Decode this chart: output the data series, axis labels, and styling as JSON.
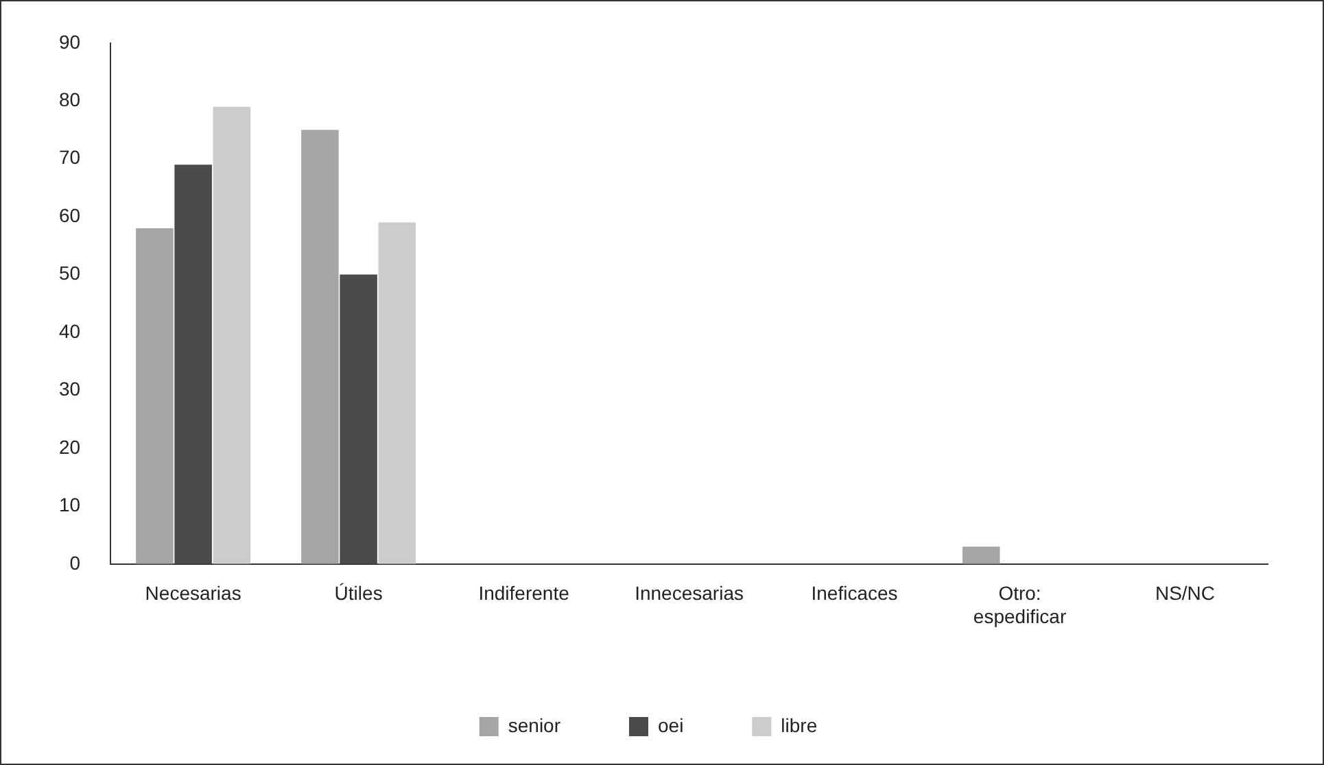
{
  "chart_data": {
    "type": "bar",
    "categories": [
      "Necesarias",
      "Útiles",
      "Indiferente",
      "Innecesarias",
      "Ineficaces",
      "Otro:\nespedificar",
      "NS/NC"
    ],
    "series": [
      {
        "name": "senior",
        "color": "#a5a5a5",
        "values": [
          58,
          75,
          0,
          0,
          0,
          3,
          0
        ]
      },
      {
        "name": "oei",
        "color": "#4a4a4a",
        "values": [
          69,
          50,
          0,
          0,
          0,
          0,
          0
        ]
      },
      {
        "name": "libre",
        "color": "#cccccc",
        "values": [
          79,
          59,
          0,
          0,
          0,
          0,
          0
        ]
      }
    ],
    "ylim": [
      0,
      90
    ],
    "yticks": [
      0,
      10,
      20,
      30,
      40,
      50,
      60,
      70,
      80,
      90
    ],
    "grid": false,
    "legend": "bottom"
  }
}
